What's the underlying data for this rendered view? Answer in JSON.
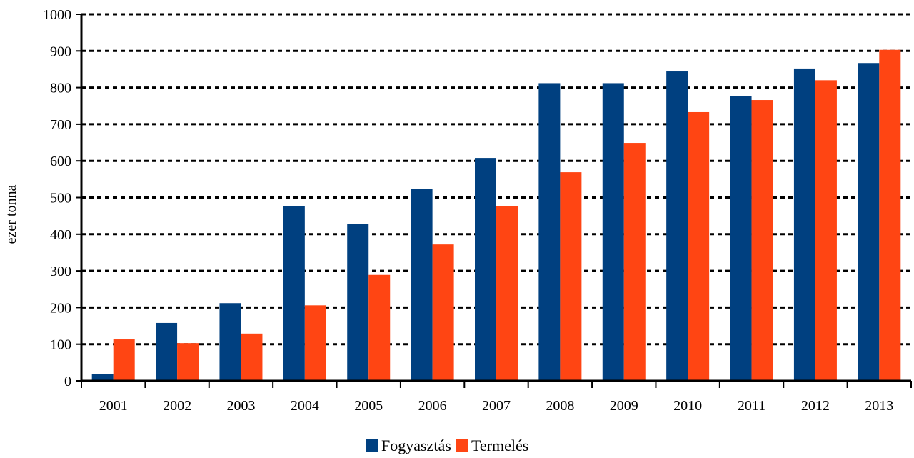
{
  "chart_data": {
    "type": "bar",
    "categories": [
      "2001",
      "2002",
      "2003",
      "2004",
      "2005",
      "2006",
      "2007",
      "2008",
      "2009",
      "2010",
      "2011",
      "2012",
      "2013"
    ],
    "series": [
      {
        "name": "Fogyasztás",
        "color": "#004080",
        "values": [
          19,
          158,
          212,
          477,
          427,
          524,
          608,
          812,
          812,
          844,
          776,
          852,
          867
        ]
      },
      {
        "name": "Termelés",
        "color": "#FF4513",
        "values": [
          113,
          103,
          129,
          206,
          289,
          372,
          476,
          569,
          649,
          733,
          766,
          820,
          903
        ]
      }
    ],
    "title": "",
    "xlabel": "",
    "ylabel": "ezer tonna",
    "ylim": [
      0,
      1000
    ],
    "yticks": [
      0,
      100,
      200,
      300,
      400,
      500,
      600,
      700,
      800,
      900,
      1000
    ],
    "grid": true,
    "legend_position": "bottom-center"
  }
}
